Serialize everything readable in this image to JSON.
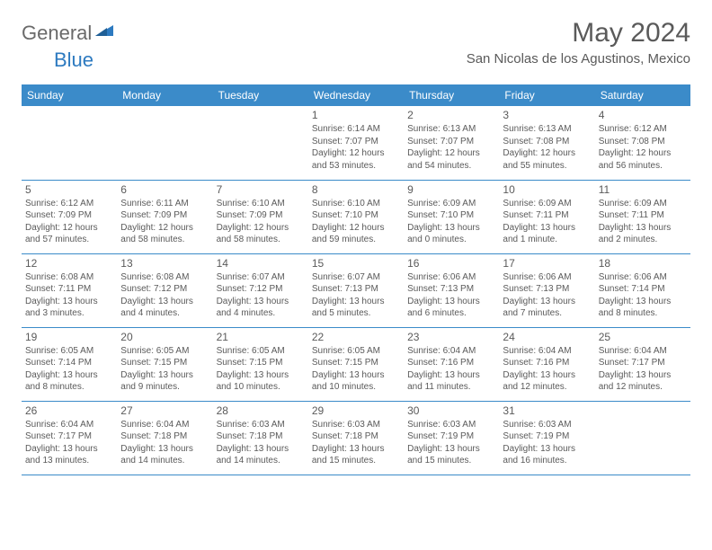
{
  "brand": {
    "text1": "General",
    "text2": "Blue"
  },
  "title": "May 2024",
  "location": "San Nicolas de los Agustinos, Mexico",
  "colors": {
    "header_bg": "#3b8bc9",
    "header_text": "#ffffff",
    "text": "#5a5a5a",
    "rule": "#3b8bc9",
    "brand_gray": "#6a6a6a",
    "brand_blue": "#2d7ac0",
    "background": "#ffffff"
  },
  "typography": {
    "title_fontsize": 30,
    "location_fontsize": 15,
    "dayheader_fontsize": 12,
    "daynum_fontsize": 12,
    "cell_fontsize": 10
  },
  "day_labels": [
    "Sunday",
    "Monday",
    "Tuesday",
    "Wednesday",
    "Thursday",
    "Friday",
    "Saturday"
  ],
  "weeks": [
    [
      {
        "num": "",
        "lines": [
          "",
          "",
          "",
          ""
        ]
      },
      {
        "num": "",
        "lines": [
          "",
          "",
          "",
          ""
        ]
      },
      {
        "num": "",
        "lines": [
          "",
          "",
          "",
          ""
        ]
      },
      {
        "num": "1",
        "lines": [
          "Sunrise: 6:14 AM",
          "Sunset: 7:07 PM",
          "Daylight: 12 hours",
          "and 53 minutes."
        ]
      },
      {
        "num": "2",
        "lines": [
          "Sunrise: 6:13 AM",
          "Sunset: 7:07 PM",
          "Daylight: 12 hours",
          "and 54 minutes."
        ]
      },
      {
        "num": "3",
        "lines": [
          "Sunrise: 6:13 AM",
          "Sunset: 7:08 PM",
          "Daylight: 12 hours",
          "and 55 minutes."
        ]
      },
      {
        "num": "4",
        "lines": [
          "Sunrise: 6:12 AM",
          "Sunset: 7:08 PM",
          "Daylight: 12 hours",
          "and 56 minutes."
        ]
      }
    ],
    [
      {
        "num": "5",
        "lines": [
          "Sunrise: 6:12 AM",
          "Sunset: 7:09 PM",
          "Daylight: 12 hours",
          "and 57 minutes."
        ]
      },
      {
        "num": "6",
        "lines": [
          "Sunrise: 6:11 AM",
          "Sunset: 7:09 PM",
          "Daylight: 12 hours",
          "and 58 minutes."
        ]
      },
      {
        "num": "7",
        "lines": [
          "Sunrise: 6:10 AM",
          "Sunset: 7:09 PM",
          "Daylight: 12 hours",
          "and 58 minutes."
        ]
      },
      {
        "num": "8",
        "lines": [
          "Sunrise: 6:10 AM",
          "Sunset: 7:10 PM",
          "Daylight: 12 hours",
          "and 59 minutes."
        ]
      },
      {
        "num": "9",
        "lines": [
          "Sunrise: 6:09 AM",
          "Sunset: 7:10 PM",
          "Daylight: 13 hours",
          "and 0 minutes."
        ]
      },
      {
        "num": "10",
        "lines": [
          "Sunrise: 6:09 AM",
          "Sunset: 7:11 PM",
          "Daylight: 13 hours",
          "and 1 minute."
        ]
      },
      {
        "num": "11",
        "lines": [
          "Sunrise: 6:09 AM",
          "Sunset: 7:11 PM",
          "Daylight: 13 hours",
          "and 2 minutes."
        ]
      }
    ],
    [
      {
        "num": "12",
        "lines": [
          "Sunrise: 6:08 AM",
          "Sunset: 7:11 PM",
          "Daylight: 13 hours",
          "and 3 minutes."
        ]
      },
      {
        "num": "13",
        "lines": [
          "Sunrise: 6:08 AM",
          "Sunset: 7:12 PM",
          "Daylight: 13 hours",
          "and 4 minutes."
        ]
      },
      {
        "num": "14",
        "lines": [
          "Sunrise: 6:07 AM",
          "Sunset: 7:12 PM",
          "Daylight: 13 hours",
          "and 4 minutes."
        ]
      },
      {
        "num": "15",
        "lines": [
          "Sunrise: 6:07 AM",
          "Sunset: 7:13 PM",
          "Daylight: 13 hours",
          "and 5 minutes."
        ]
      },
      {
        "num": "16",
        "lines": [
          "Sunrise: 6:06 AM",
          "Sunset: 7:13 PM",
          "Daylight: 13 hours",
          "and 6 minutes."
        ]
      },
      {
        "num": "17",
        "lines": [
          "Sunrise: 6:06 AM",
          "Sunset: 7:13 PM",
          "Daylight: 13 hours",
          "and 7 minutes."
        ]
      },
      {
        "num": "18",
        "lines": [
          "Sunrise: 6:06 AM",
          "Sunset: 7:14 PM",
          "Daylight: 13 hours",
          "and 8 minutes."
        ]
      }
    ],
    [
      {
        "num": "19",
        "lines": [
          "Sunrise: 6:05 AM",
          "Sunset: 7:14 PM",
          "Daylight: 13 hours",
          "and 8 minutes."
        ]
      },
      {
        "num": "20",
        "lines": [
          "Sunrise: 6:05 AM",
          "Sunset: 7:15 PM",
          "Daylight: 13 hours",
          "and 9 minutes."
        ]
      },
      {
        "num": "21",
        "lines": [
          "Sunrise: 6:05 AM",
          "Sunset: 7:15 PM",
          "Daylight: 13 hours",
          "and 10 minutes."
        ]
      },
      {
        "num": "22",
        "lines": [
          "Sunrise: 6:05 AM",
          "Sunset: 7:15 PM",
          "Daylight: 13 hours",
          "and 10 minutes."
        ]
      },
      {
        "num": "23",
        "lines": [
          "Sunrise: 6:04 AM",
          "Sunset: 7:16 PM",
          "Daylight: 13 hours",
          "and 11 minutes."
        ]
      },
      {
        "num": "24",
        "lines": [
          "Sunrise: 6:04 AM",
          "Sunset: 7:16 PM",
          "Daylight: 13 hours",
          "and 12 minutes."
        ]
      },
      {
        "num": "25",
        "lines": [
          "Sunrise: 6:04 AM",
          "Sunset: 7:17 PM",
          "Daylight: 13 hours",
          "and 12 minutes."
        ]
      }
    ],
    [
      {
        "num": "26",
        "lines": [
          "Sunrise: 6:04 AM",
          "Sunset: 7:17 PM",
          "Daylight: 13 hours",
          "and 13 minutes."
        ]
      },
      {
        "num": "27",
        "lines": [
          "Sunrise: 6:04 AM",
          "Sunset: 7:18 PM",
          "Daylight: 13 hours",
          "and 14 minutes."
        ]
      },
      {
        "num": "28",
        "lines": [
          "Sunrise: 6:03 AM",
          "Sunset: 7:18 PM",
          "Daylight: 13 hours",
          "and 14 minutes."
        ]
      },
      {
        "num": "29",
        "lines": [
          "Sunrise: 6:03 AM",
          "Sunset: 7:18 PM",
          "Daylight: 13 hours",
          "and 15 minutes."
        ]
      },
      {
        "num": "30",
        "lines": [
          "Sunrise: 6:03 AM",
          "Sunset: 7:19 PM",
          "Daylight: 13 hours",
          "and 15 minutes."
        ]
      },
      {
        "num": "31",
        "lines": [
          "Sunrise: 6:03 AM",
          "Sunset: 7:19 PM",
          "Daylight: 13 hours",
          "and 16 minutes."
        ]
      },
      {
        "num": "",
        "lines": [
          "",
          "",
          "",
          ""
        ]
      }
    ]
  ]
}
